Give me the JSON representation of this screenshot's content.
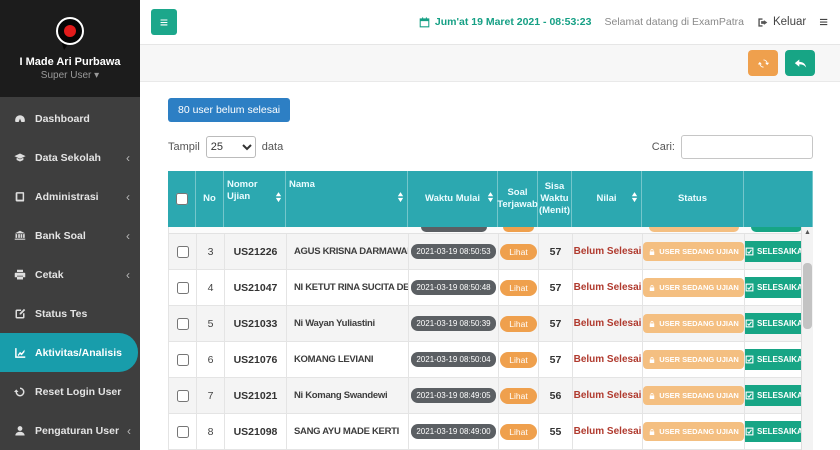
{
  "colors": {
    "sidebar": "#3e3e3e",
    "sidebar_dark": "#1c1c1c",
    "active_item": "#189dab",
    "table_header": "#2ca8b0",
    "green": "#1ca78b",
    "blue": "#2d7fc4",
    "orange": "#efa04d",
    "orange_light": "#f4bf81",
    "teal_button": "#17a585",
    "red": "#b03a2e",
    "badge_gray": "#5b5f63",
    "date_teal": "#16a085"
  },
  "sidebar": {
    "profile": {
      "name": "I Made Ari Purbawa",
      "role": "Super User"
    },
    "items": [
      {
        "label": "Dashboard",
        "icon": "tachometer-icon",
        "has_submenu": false,
        "active": false
      },
      {
        "label": "Data Sekolah",
        "icon": "graduation-cap-icon",
        "has_submenu": true,
        "active": false
      },
      {
        "label": "Administrasi",
        "icon": "book-icon",
        "has_submenu": true,
        "active": false
      },
      {
        "label": "Bank Soal",
        "icon": "bank-icon",
        "has_submenu": true,
        "active": false
      },
      {
        "label": "Cetak",
        "icon": "printer-icon",
        "has_submenu": true,
        "active": false
      },
      {
        "label": "Status Tes",
        "icon": "edit-icon",
        "has_submenu": false,
        "active": false
      },
      {
        "label": "Aktivitas/Analisis",
        "icon": "chart-line-icon",
        "has_submenu": false,
        "active": true
      },
      {
        "label": "Reset Login User",
        "icon": "undo-icon",
        "has_submenu": false,
        "active": false
      },
      {
        "label": "Pengaturan User",
        "icon": "user-icon",
        "has_submenu": true,
        "active": false
      }
    ]
  },
  "topbar": {
    "datetime": "Jum'at 19 Maret 2021 - 08:53:23",
    "welcome": "Selamat datang di ExamPatra",
    "logout_label": "Keluar"
  },
  "toolbar": {
    "pending_button": "80 user belum selesai",
    "show_label": "Tampil",
    "show_value": "25",
    "data_label": "data",
    "search_label": "Cari:",
    "search_value": ""
  },
  "table": {
    "columns": [
      {
        "label": "",
        "type": "checkbox",
        "sortable": false
      },
      {
        "label": "No",
        "sortable": false
      },
      {
        "label": "Nomor Ujian",
        "sortable": true,
        "align": "left"
      },
      {
        "label": "Nama",
        "sortable": true,
        "align": "left"
      },
      {
        "label": "Waktu Mulai",
        "sortable": true
      },
      {
        "label": "Soal Terjawab",
        "sortable": false
      },
      {
        "label": "Sisa Waktu (Menit)",
        "sortable": false
      },
      {
        "label": "Nilai",
        "sortable": true
      },
      {
        "label": "Status",
        "sortable": false
      },
      {
        "label": "",
        "sortable": false
      }
    ],
    "rows": [
      {
        "no": "3",
        "nomor": "US21226",
        "nama": "AGUS KRISNA DARMAWAN",
        "waktu": "2021-03-19 08:50:53",
        "soal": "Lihat",
        "sisa": "57",
        "nilai": "Belum Selesai",
        "status": "USER SEDANG UJIAN",
        "action": "SELESAIKAN"
      },
      {
        "no": "4",
        "nomor": "US21047",
        "nama": "NI KETUT RINA SUCITA DEWI",
        "waktu": "2021-03-19 08:50:48",
        "soal": "Lihat",
        "sisa": "57",
        "nilai": "Belum Selesai",
        "status": "USER SEDANG UJIAN",
        "action": "SELESAIKAN"
      },
      {
        "no": "5",
        "nomor": "US21033",
        "nama": "Ni Wayan Yuliastini",
        "waktu": "2021-03-19 08:50:39",
        "soal": "Lihat",
        "sisa": "57",
        "nilai": "Belum Selesai",
        "status": "USER SEDANG UJIAN",
        "action": "SELESAIKAN"
      },
      {
        "no": "6",
        "nomor": "US21076",
        "nama": "KOMANG LEVIANI",
        "waktu": "2021-03-19 08:50:04",
        "soal": "Lihat",
        "sisa": "57",
        "nilai": "Belum Selesai",
        "status": "USER SEDANG UJIAN",
        "action": "SELESAIKAN"
      },
      {
        "no": "7",
        "nomor": "US21021",
        "nama": "Ni Komang Swandewi",
        "waktu": "2021-03-19 08:49:05",
        "soal": "Lihat",
        "sisa": "56",
        "nilai": "Belum Selesai",
        "status": "USER SEDANG UJIAN",
        "action": "SELESAIKAN"
      },
      {
        "no": "8",
        "nomor": "US21098",
        "nama": "SANG AYU MADE KERTI",
        "waktu": "2021-03-19 08:49:00",
        "soal": "Lihat",
        "sisa": "55",
        "nilai": "Belum Selesai",
        "status": "USER SEDANG UJIAN",
        "action": "SELESAIKAN"
      }
    ]
  }
}
